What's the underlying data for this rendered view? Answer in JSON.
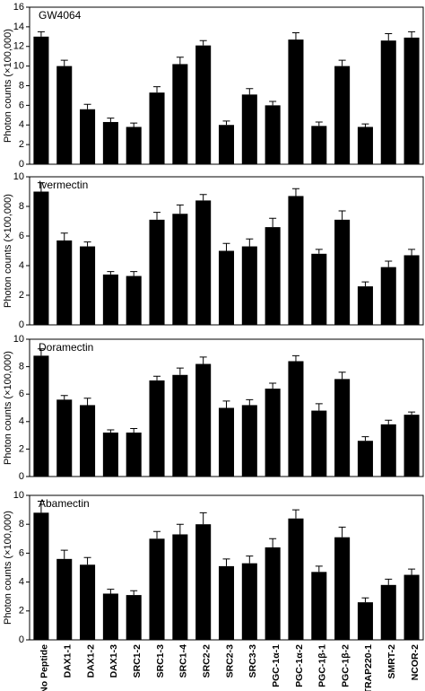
{
  "chart_data": [
    {
      "type": "bar",
      "title": "GW4064",
      "y_label": "Photon counts (×100,000)",
      "color": "#000000",
      "values": [
        13.0,
        10.0,
        5.6,
        4.3,
        3.8,
        7.3,
        10.2,
        12.1,
        4.0,
        7.1,
        6.0,
        12.7,
        3.9,
        10.0,
        3.8,
        12.6,
        12.9
      ],
      "errors": [
        0.5,
        0.6,
        0.5,
        0.4,
        0.4,
        0.6,
        0.7,
        0.5,
        0.4,
        0.6,
        0.4,
        0.7,
        0.4,
        0.6,
        0.3,
        0.7,
        0.6
      ],
      "ylim": [
        0,
        16
      ],
      "yticks": [
        0,
        2,
        4,
        6,
        8,
        10,
        12,
        14,
        16
      ]
    },
    {
      "type": "bar",
      "title": "Ivermectin",
      "y_label": "Photon counts (×100,000)",
      "color": "#000000",
      "values": [
        9.0,
        5.7,
        5.3,
        3.4,
        3.3,
        7.1,
        7.5,
        8.4,
        5.0,
        5.3,
        6.6,
        8.7,
        4.8,
        7.1,
        2.6,
        3.9,
        4.7
      ],
      "errors": [
        0.6,
        0.5,
        0.3,
        0.2,
        0.3,
        0.5,
        0.6,
        0.4,
        0.5,
        0.5,
        0.6,
        0.5,
        0.3,
        0.6,
        0.3,
        0.4,
        0.4
      ],
      "ylim": [
        0,
        10
      ],
      "yticks": [
        0,
        2,
        4,
        6,
        8,
        10
      ]
    },
    {
      "type": "bar",
      "title": "Doramectin",
      "y_label": "Photon counts (×100,000)",
      "color": "#000000",
      "values": [
        8.8,
        5.6,
        5.2,
        3.2,
        3.2,
        7.0,
        7.4,
        8.2,
        5.0,
        5.2,
        6.4,
        8.4,
        4.8,
        7.1,
        2.6,
        3.8,
        4.5
      ],
      "errors": [
        0.5,
        0.3,
        0.5,
        0.2,
        0.3,
        0.3,
        0.5,
        0.5,
        0.5,
        0.4,
        0.4,
        0.4,
        0.5,
        0.5,
        0.3,
        0.3,
        0.2
      ],
      "ylim": [
        0,
        10
      ],
      "yticks": [
        0,
        2,
        4,
        6,
        8,
        10
      ]
    },
    {
      "type": "bar",
      "title": "Abamectin",
      "y_label": "Photon counts (×100,000)",
      "color": "#000000",
      "categories": [
        "No Peptide",
        "DAX1-1",
        "DAX1-2",
        "DAX1-3",
        "SRC1-2",
        "SRC1-3",
        "SRC1-4",
        "SRC2-2",
        "SRC2-3",
        "SRC3-3",
        "PGC-1α-1",
        "PGC-1α-2",
        "PGC-1β-1",
        "PGC-1β-2",
        "TRAP220-1",
        "SMRT-2",
        "NCOR-2"
      ],
      "values": [
        8.8,
        5.6,
        5.2,
        3.2,
        3.1,
        7.0,
        7.3,
        8.0,
        5.1,
        5.3,
        6.4,
        8.4,
        4.7,
        7.1,
        2.6,
        3.8,
        4.5
      ],
      "errors": [
        0.8,
        0.6,
        0.5,
        0.3,
        0.3,
        0.5,
        0.7,
        0.8,
        0.5,
        0.5,
        0.6,
        0.6,
        0.4,
        0.7,
        0.3,
        0.4,
        0.4
      ],
      "ylim": [
        0,
        10
      ],
      "yticks": [
        0,
        2,
        4,
        6,
        8,
        10
      ]
    }
  ]
}
